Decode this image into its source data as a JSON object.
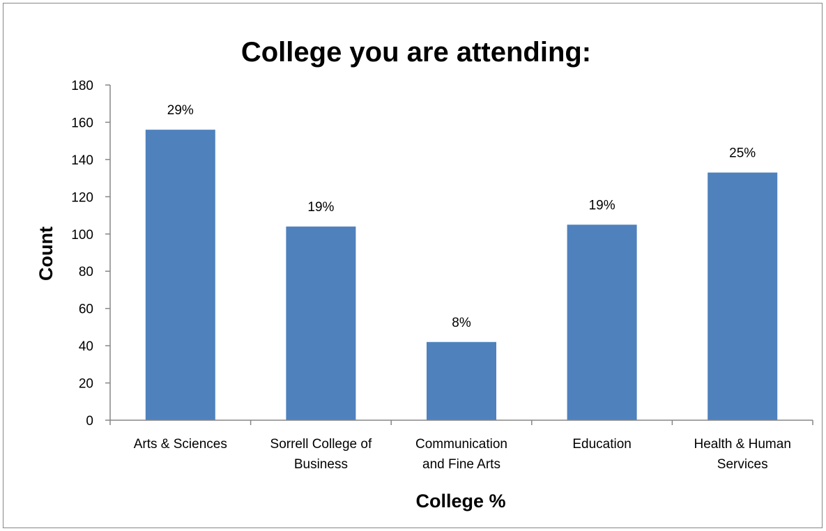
{
  "chart_data": {
    "type": "bar",
    "title": "College you are attending:",
    "xlabel": "College %",
    "ylabel": "Count",
    "ylim": [
      0,
      180
    ],
    "yticks": [
      0,
      20,
      40,
      60,
      80,
      100,
      120,
      140,
      160,
      180
    ],
    "categories": [
      [
        "Arts & Sciences"
      ],
      [
        "Sorrell College of",
        "Business"
      ],
      [
        "Communication",
        "and Fine Arts"
      ],
      [
        "Education"
      ],
      [
        "Health & Human",
        "Services"
      ]
    ],
    "values": [
      156,
      104,
      42,
      105,
      133
    ],
    "data_labels": [
      "29%",
      "19%",
      "8%",
      "19%",
      "25%"
    ],
    "bar_color": "#4F81BD",
    "axis_color": "#868686",
    "grid": false,
    "legend": "none"
  }
}
